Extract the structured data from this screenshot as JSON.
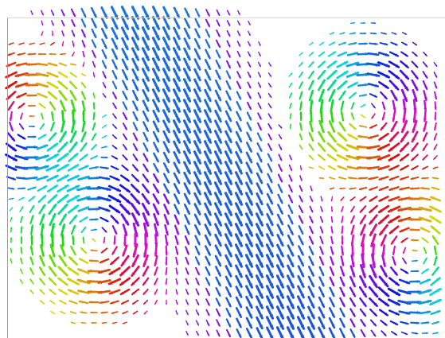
{
  "figure": {
    "kind": "vector-field-glyph-plot",
    "glyph": "arrow",
    "colormap": "hue-by-direction",
    "colors": {
      "background": "#ffffff",
      "border": "#9a9a9a"
    },
    "features": [
      {
        "name": "diagonal-stream",
        "description_color": "#2266dd"
      },
      {
        "name": "vortex-upper-left",
        "rotation": "counter-clockwise"
      },
      {
        "name": "vortex-upper-right",
        "rotation": "clockwise"
      },
      {
        "name": "vortex-lower-left",
        "rotation": "clockwise"
      },
      {
        "name": "vortex-lower-right",
        "rotation": "counter-clockwise"
      }
    ]
  }
}
